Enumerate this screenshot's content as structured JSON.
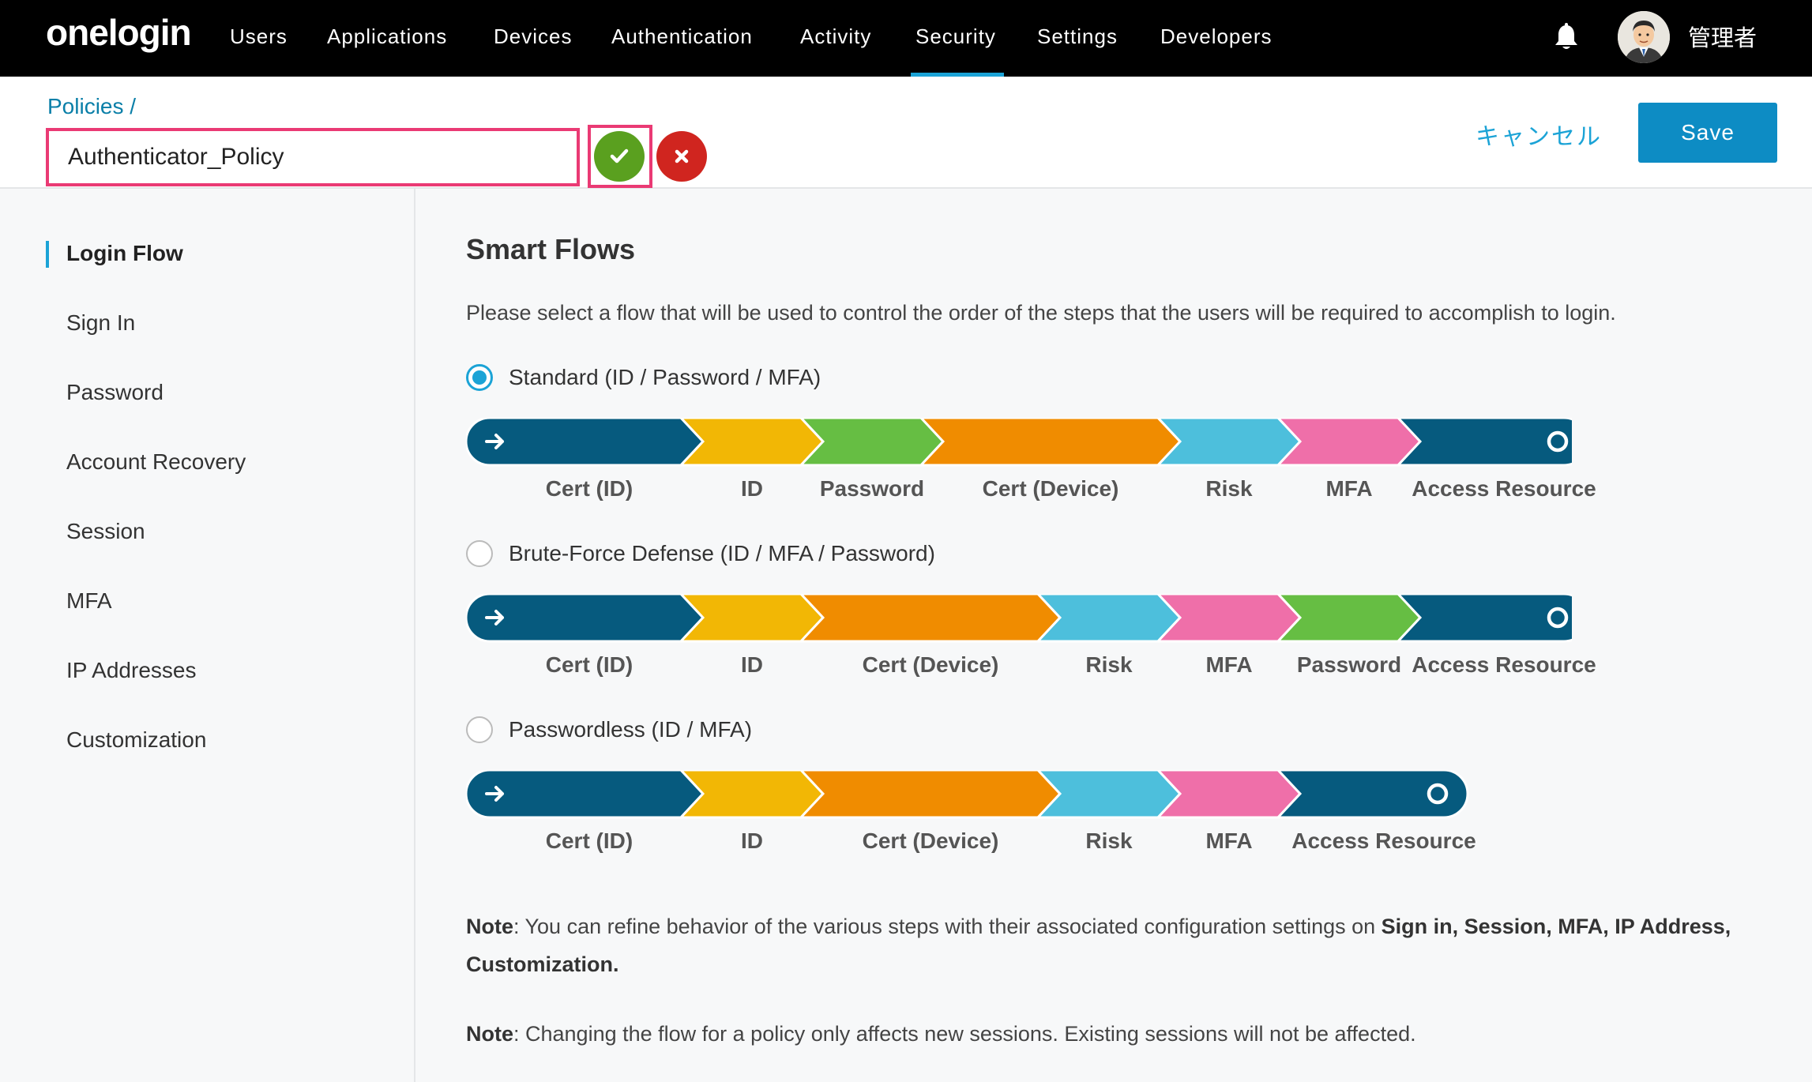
{
  "nav": {
    "logo": "onelogin",
    "items": [
      "Users",
      "Applications",
      "Devices",
      "Authentication",
      "Activity",
      "Security",
      "Settings",
      "Developers"
    ],
    "active": "Security",
    "username": "管理者"
  },
  "header": {
    "breadcrumb": "Policies /",
    "policy_name": "Authenticator_Policy",
    "cancel_label": "キャンセル",
    "save_label": "Save"
  },
  "sidebar": {
    "items": [
      "Login Flow",
      "Sign In",
      "Password",
      "Account Recovery",
      "Session",
      "MFA",
      "IP Addresses",
      "Customization"
    ],
    "active": "Login Flow"
  },
  "main": {
    "title": "Smart Flows",
    "description": "Please select a flow that will be used to control the order of the steps that the users will be required to accomplish to login.",
    "flows": [
      {
        "label": "Standard (ID / Password / MFA)",
        "selected": true,
        "steps": [
          "Cert (ID)",
          "ID",
          "Password",
          "Cert (Device)",
          "Risk",
          "MFA",
          "Access Resource"
        ]
      },
      {
        "label": "Brute-Force Defense (ID / MFA / Password)",
        "selected": false,
        "steps": [
          "Cert (ID)",
          "ID",
          "Cert (Device)",
          "Risk",
          "MFA",
          "Password",
          "Access Resource"
        ]
      },
      {
        "label": "Passwordless (ID / MFA)",
        "selected": false,
        "steps": [
          "Cert (ID)",
          "ID",
          "Cert (Device)",
          "Risk",
          "MFA",
          "Access Resource"
        ]
      }
    ],
    "note1_label": "Note",
    "note1_text": ": You can refine behavior of the various steps with their associated configuration settings on ",
    "note1_bold": "Sign in, Session, MFA, IP Address, Customization.",
    "note2_label": "Note",
    "note2_text": ": Changing the flow for a policy only affects new sessions. Existing sessions will not be affected."
  },
  "colors": {
    "Cert (ID)": "#065a7e",
    "ID": "#f2b705",
    "Password": "#66be43",
    "Cert (Device)": "#f08c00",
    "Risk": "#4dbfdc",
    "MFA": "#ef6fa9",
    "Access Resource": "#065a7e",
    "accent": "#1ba3d6",
    "highlight": "#ea3a74"
  }
}
